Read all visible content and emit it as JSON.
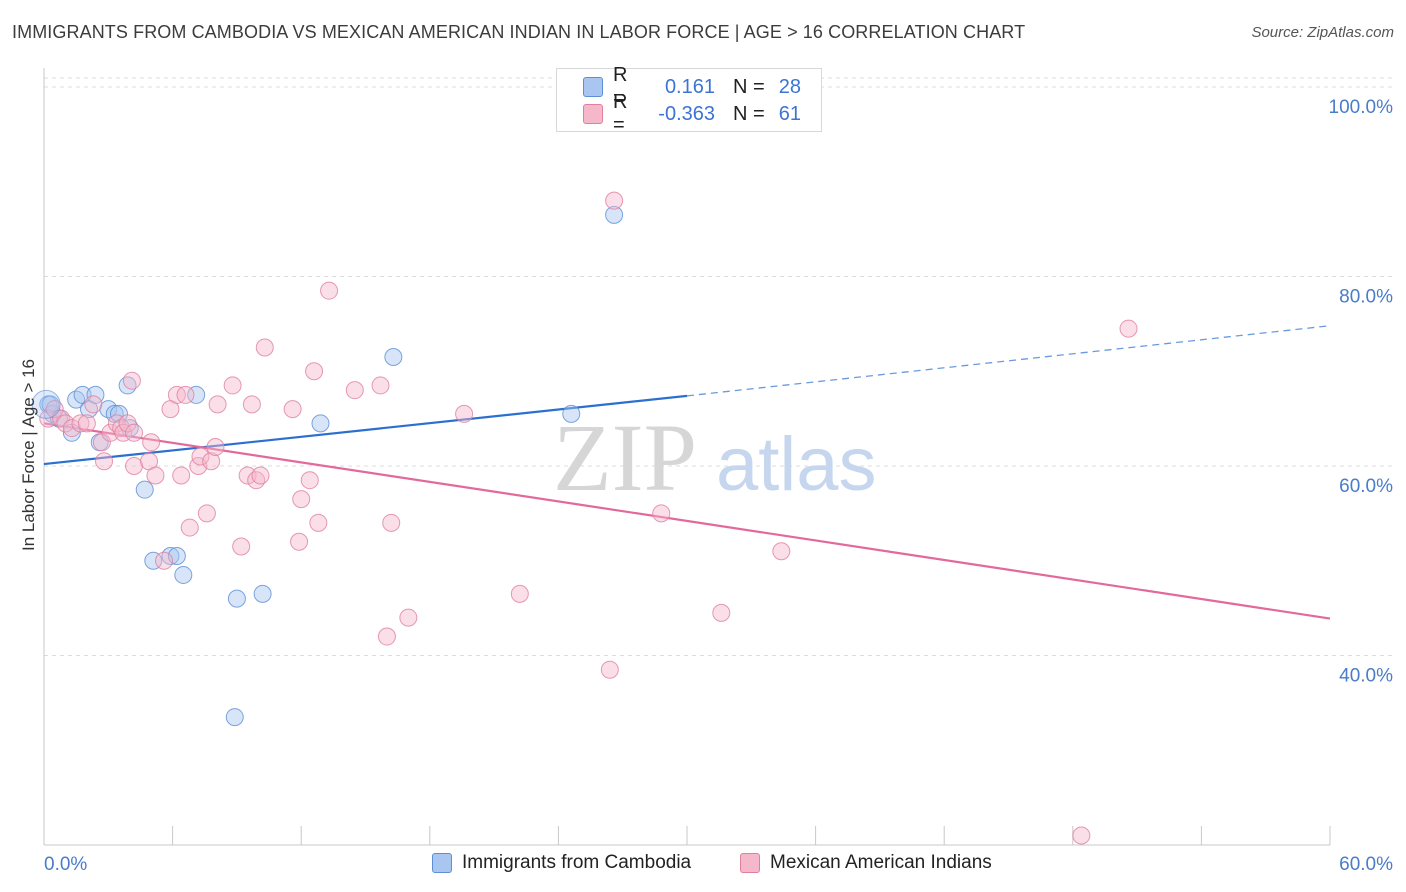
{
  "title": "IMMIGRANTS FROM CAMBODIA VS MEXICAN AMERICAN INDIAN IN LABOR FORCE | AGE > 16 CORRELATION CHART",
  "source": "Source: ZipAtlas.com",
  "watermark": {
    "zip": "ZIP",
    "atlas": "atlas"
  },
  "legend": {
    "r_label": "R =",
    "n_label": "N =",
    "series": [
      {
        "r": "0.161",
        "n": "28"
      },
      {
        "r": "-0.363",
        "n": "61"
      }
    ]
  },
  "colors": {
    "blue_fill": "#a9c6f0",
    "blue_stroke": "#5b8fd6",
    "blue_line": "#2b6fd0",
    "pink_fill": "#f5b8cb",
    "pink_stroke": "#e07fa0",
    "pink_line": "#e2699a",
    "tick_text": "#4a7cc9",
    "grid": "#dcdcdc"
  },
  "chart_data": {
    "type": "scatter",
    "title": "IMMIGRANTS FROM CAMBODIA VS MEXICAN AMERICAN INDIAN IN LABOR FORCE | AGE > 16 CORRELATION CHART",
    "xlabel": "",
    "ylabel": "In Labor Force | Age > 16",
    "xlim": [
      0,
      60
    ],
    "ylim": [
      20,
      102
    ],
    "x_tick_labels": [
      "0.0%",
      "60.0%"
    ],
    "y_ticks": [
      40,
      60,
      80,
      100
    ],
    "y_tick_labels": [
      "40.0%",
      "60.0%",
      "80.0%",
      "100.0%"
    ],
    "grid": true,
    "legend_position": "bottom",
    "series": [
      {
        "name": "Immigrants from Cambodia",
        "points": [
          [
            0.2,
            66.5
          ],
          [
            0.4,
            65.5
          ],
          [
            0.7,
            65.0
          ],
          [
            1.3,
            63.5
          ],
          [
            1.5,
            67.0
          ],
          [
            1.8,
            67.5
          ],
          [
            2.1,
            66.0
          ],
          [
            2.4,
            67.5
          ],
          [
            2.6,
            62.5
          ],
          [
            3.0,
            66.0
          ],
          [
            3.3,
            65.5
          ],
          [
            3.5,
            65.5
          ],
          [
            3.9,
            68.5
          ],
          [
            4.0,
            64.0
          ],
          [
            4.7,
            57.5
          ],
          [
            5.1,
            50.0
          ],
          [
            5.9,
            50.5
          ],
          [
            6.2,
            50.5
          ],
          [
            6.5,
            48.5
          ],
          [
            7.1,
            67.5
          ],
          [
            8.9,
            33.5
          ],
          [
            9.0,
            46.0
          ],
          [
            10.2,
            46.5
          ],
          [
            12.9,
            64.5
          ],
          [
            16.3,
            71.5
          ],
          [
            24.6,
            65.5
          ],
          [
            26.6,
            86.5
          ],
          [
            0.3,
            66.5
          ]
        ],
        "trend": {
          "x": [
            0,
            30
          ],
          "y": [
            60.2,
            67.4
          ],
          "dashed_to": [
            60,
            74.8
          ]
        }
      },
      {
        "name": "Mexican American Indians",
        "points": [
          [
            0.2,
            65.0
          ],
          [
            0.5,
            66.0
          ],
          [
            0.8,
            65.0
          ],
          [
            1.0,
            64.5
          ],
          [
            1.3,
            64.0
          ],
          [
            1.7,
            64.5
          ],
          [
            2.0,
            64.5
          ],
          [
            2.3,
            66.5
          ],
          [
            2.7,
            62.5
          ],
          [
            2.8,
            60.5
          ],
          [
            3.1,
            63.5
          ],
          [
            3.4,
            64.5
          ],
          [
            3.6,
            64.0
          ],
          [
            3.7,
            63.5
          ],
          [
            3.9,
            64.5
          ],
          [
            4.1,
            69.0
          ],
          [
            4.2,
            63.5
          ],
          [
            4.2,
            60.0
          ],
          [
            4.9,
            60.5
          ],
          [
            5.0,
            62.5
          ],
          [
            5.2,
            59.0
          ],
          [
            5.6,
            50.0
          ],
          [
            5.9,
            66.0
          ],
          [
            6.2,
            67.5
          ],
          [
            6.4,
            59.0
          ],
          [
            6.6,
            67.5
          ],
          [
            6.8,
            53.5
          ],
          [
            7.2,
            60.0
          ],
          [
            7.3,
            61.0
          ],
          [
            7.6,
            55.0
          ],
          [
            7.8,
            60.5
          ],
          [
            8.0,
            62.0
          ],
          [
            8.1,
            66.5
          ],
          [
            8.8,
            68.5
          ],
          [
            9.2,
            51.5
          ],
          [
            9.5,
            59.0
          ],
          [
            9.7,
            66.5
          ],
          [
            9.9,
            58.5
          ],
          [
            10.1,
            59.0
          ],
          [
            10.3,
            72.5
          ],
          [
            11.6,
            66.0
          ],
          [
            11.9,
            52.0
          ],
          [
            12.0,
            56.5
          ],
          [
            12.4,
            58.5
          ],
          [
            12.6,
            70.0
          ],
          [
            12.8,
            54.0
          ],
          [
            13.3,
            78.5
          ],
          [
            14.5,
            68.0
          ],
          [
            15.7,
            68.5
          ],
          [
            16.0,
            42.0
          ],
          [
            16.2,
            54.0
          ],
          [
            17.0,
            44.0
          ],
          [
            19.6,
            65.5
          ],
          [
            22.2,
            46.5
          ],
          [
            26.4,
            38.5
          ],
          [
            26.6,
            88.0
          ],
          [
            28.8,
            55.0
          ],
          [
            31.6,
            44.5
          ],
          [
            34.4,
            51.0
          ],
          [
            50.6,
            74.5
          ],
          [
            48.4,
            21.0
          ]
        ],
        "trend": {
          "x": [
            0,
            60
          ],
          "y": [
            64.5,
            43.9
          ]
        }
      }
    ]
  }
}
